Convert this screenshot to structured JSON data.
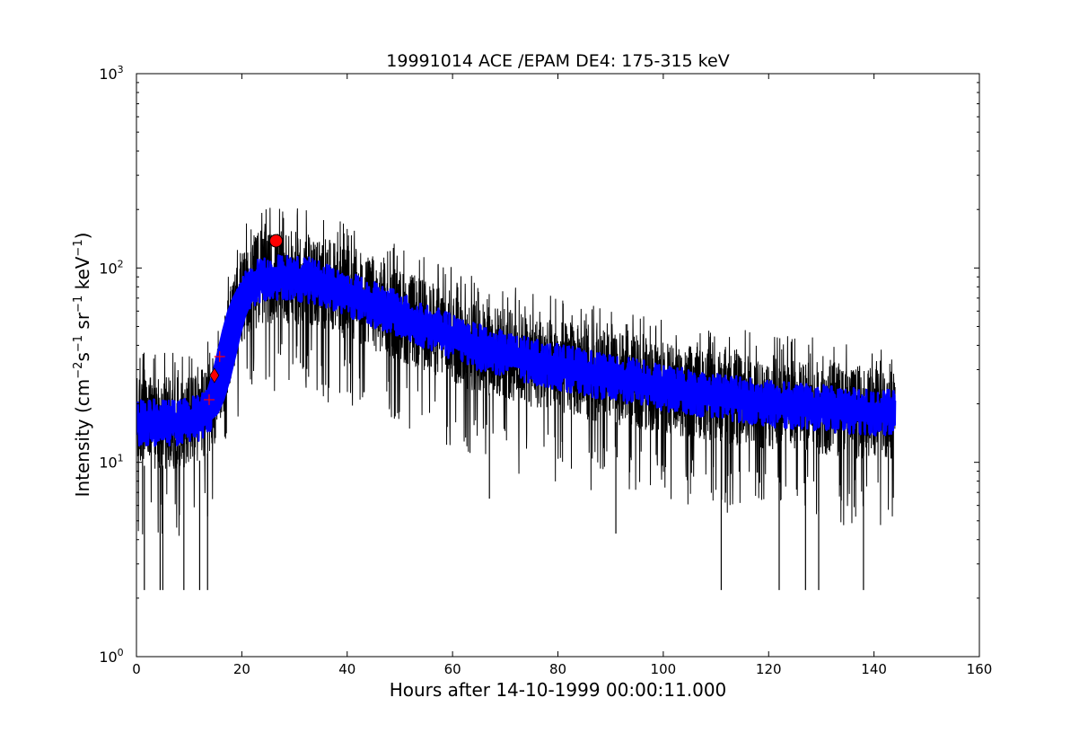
{
  "chart_data": {
    "type": "line",
    "title": "19991014 ACE /EPAM DE4: 175-315 keV",
    "xlabel": "Hours after 14-10-1999 00:00:11.000",
    "ylabel_parts": {
      "prefix": "Intensity (cm",
      "exp1": "−2",
      "mid1": "s",
      "exp2": "−1",
      "mid2": " sr",
      "exp3": "−1",
      "mid3": " keV",
      "exp4": "−1",
      "suffix": ")"
    },
    "xlim": [
      0,
      160
    ],
    "ylim": [
      1,
      1000
    ],
    "yscale": "log",
    "grid": false,
    "x_ticks": [
      0,
      20,
      40,
      60,
      80,
      100,
      120,
      140,
      160
    ],
    "y_ticks": [
      {
        "value": 1,
        "base": "10",
        "exp": "0"
      },
      {
        "value": 10,
        "base": "10",
        "exp": "1"
      },
      {
        "value": 100,
        "base": "10",
        "exp": "2"
      },
      {
        "value": 1000,
        "base": "10",
        "exp": "3"
      }
    ],
    "series": [
      {
        "color": "#000000",
        "style": "noisy-raw",
        "x_range": [
          0,
          144
        ],
        "min_spikes": [
          {
            "x": 1.5,
            "y": 2.2
          },
          {
            "x": 4.5,
            "y": 2.2
          },
          {
            "x": 5.0,
            "y": 2.2
          },
          {
            "x": 9.0,
            "y": 2.2
          },
          {
            "x": 12.0,
            "y": 2.2
          },
          {
            "x": 13.5,
            "y": 2.2
          },
          {
            "x": 67.0,
            "y": 6.5
          },
          {
            "x": 91.0,
            "y": 4.3
          },
          {
            "x": 111.0,
            "y": 2.2
          },
          {
            "x": 122.0,
            "y": 2.2
          },
          {
            "x": 127.0,
            "y": 2.2
          },
          {
            "x": 129.5,
            "y": 2.2
          },
          {
            "x": 138.0,
            "y": 2.2
          }
        ]
      },
      {
        "color": "#0000ff",
        "style": "smoothed-band",
        "x": [
          0,
          4,
          8,
          12,
          14,
          15,
          16,
          17,
          18,
          19,
          20,
          21,
          22,
          23,
          24,
          25,
          26,
          27,
          28,
          30,
          32,
          34,
          36,
          38,
          40,
          45,
          50,
          55,
          60,
          65,
          70,
          75,
          80,
          85,
          90,
          95,
          100,
          105,
          110,
          115,
          120,
          125,
          130,
          135,
          140,
          144
        ],
        "y": [
          16,
          16,
          16,
          17,
          19,
          22,
          27,
          35,
          46,
          58,
          68,
          76,
          82,
          86,
          88,
          89,
          90,
          90,
          90,
          89,
          87,
          85,
          82,
          78,
          74,
          65,
          57,
          50,
          44,
          39,
          36,
          33,
          31,
          29,
          27,
          26,
          24,
          23,
          22,
          21,
          20,
          19.5,
          19,
          18.5,
          18,
          18
        ]
      }
    ],
    "markers": [
      {
        "symbol": "plus",
        "color": "#ff0000",
        "x": 13.8,
        "y": 21
      },
      {
        "symbol": "plus",
        "color": "#ff0000",
        "x": 15.8,
        "y": 35
      },
      {
        "symbol": "diamond",
        "color": "#ff0000",
        "x": 14.8,
        "y": 28
      },
      {
        "symbol": "circle",
        "color": "#ff0000",
        "x": 26.5,
        "y": 138
      }
    ]
  }
}
